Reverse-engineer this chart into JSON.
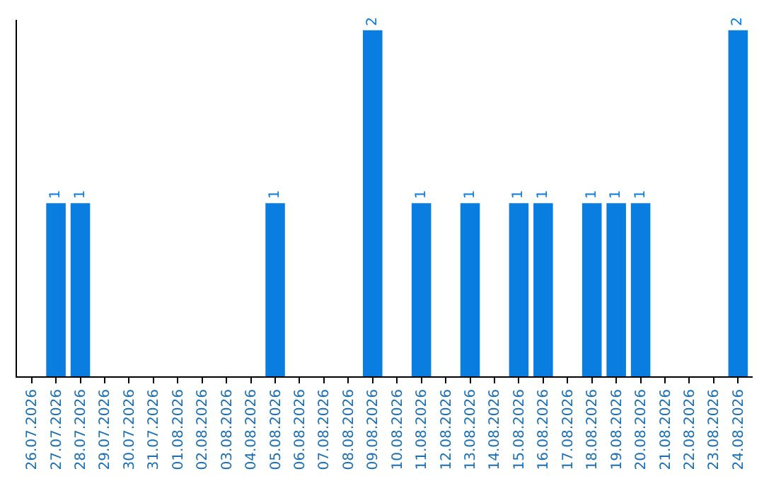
{
  "chart_data": {
    "type": "bar",
    "categories": [
      "26.07.2026",
      "27.07.2026",
      "28.07.2026",
      "29.07.2026",
      "30.07.2026",
      "31.07.2026",
      "01.08.2026",
      "02.08.2026",
      "03.08.2026",
      "04.08.2026",
      "05.08.2026",
      "06.08.2026",
      "07.08.2026",
      "08.08.2026",
      "09.08.2026",
      "10.08.2026",
      "11.08.2026",
      "12.08.2026",
      "13.08.2026",
      "14.08.2026",
      "15.08.2026",
      "16.08.2026",
      "17.08.2026",
      "18.08.2026",
      "19.08.2026",
      "20.08.2026",
      "21.08.2026",
      "22.08.2026",
      "23.08.2026",
      "24.08.2026"
    ],
    "values": [
      0,
      1,
      1,
      0,
      0,
      0,
      0,
      0,
      0,
      0,
      1,
      0,
      0,
      0,
      2,
      0,
      1,
      0,
      1,
      0,
      1,
      1,
      0,
      1,
      1,
      1,
      0,
      0,
      0,
      2
    ],
    "value_labels": [
      null,
      "1",
      "1",
      null,
      null,
      null,
      null,
      null,
      null,
      null,
      "1",
      null,
      null,
      null,
      "2",
      null,
      "1",
      null,
      "1",
      null,
      "1",
      "1",
      null,
      "1",
      "1",
      "1",
      null,
      null,
      null,
      "2"
    ],
    "color": "#0a7ee0",
    "tick_labels": "x"
  }
}
